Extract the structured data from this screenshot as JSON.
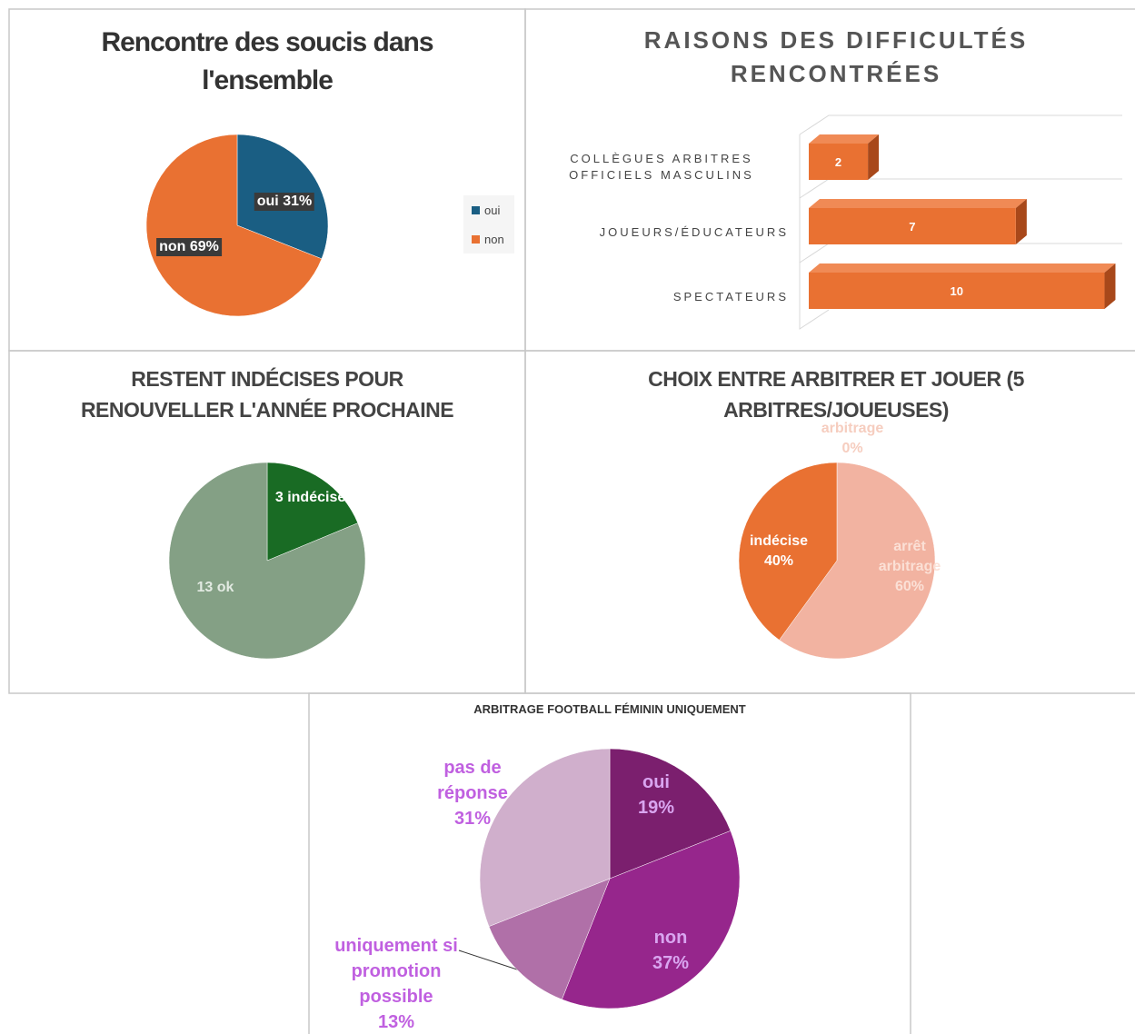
{
  "chart_data": [
    {
      "type": "pie",
      "title": "Rencontre des soucis dans l'ensemble",
      "categories": [
        "oui",
        "non"
      ],
      "values": [
        31,
        69
      ],
      "value_labels": [
        "31%",
        "69%"
      ],
      "colors": [
        "#1a5e83",
        "#e97132"
      ],
      "legend": "right"
    },
    {
      "type": "bar",
      "orientation": "horizontal",
      "title": "RAISONS DES DIFFICULTÉS RENCONTRÉES",
      "categories": [
        "COLLÈGUES ARBITRES OFFICIELS MASCULINS",
        "JOUEURS/ÉDUCATEURS",
        "SPECTATEURS"
      ],
      "values": [
        2,
        7,
        10
      ],
      "color": "#e97132",
      "xlim": [
        0,
        10.6
      ]
    },
    {
      "type": "pie",
      "title": "RESTENT INDÉCISES POUR RENOUVELLER L'ANNÉE PROCHAINE",
      "categories": [
        "indécises",
        "ok"
      ],
      "values": [
        3,
        13
      ],
      "colors": [
        "#196b24",
        "#84a085"
      ]
    },
    {
      "type": "pie",
      "title": "CHOIX ENTRE ARBITRER ET JOUER (5 ARBITRES/JOUEUSES)",
      "categories": [
        "arbitrage",
        "arrêt arbitrage",
        "indécise"
      ],
      "values": [
        0,
        60,
        40
      ],
      "value_labels": [
        "0%",
        "60%",
        "40%"
      ],
      "colors": [
        "#f6cdbf",
        "#f2b3a1",
        "#e97132"
      ]
    },
    {
      "type": "pie",
      "title": "ARBITRAGE FOOTBALL FÉMININ UNIQUEMENT",
      "categories": [
        "oui",
        "non",
        "uniquement si promotion possible",
        "pas de réponse"
      ],
      "values": [
        19,
        37,
        13,
        31
      ],
      "value_labels": [
        "19%",
        "37%",
        "13%",
        "31%"
      ],
      "colors": [
        "#7b1f6e",
        "#96268c",
        "#b070a8",
        "#d0afcc"
      ]
    }
  ]
}
